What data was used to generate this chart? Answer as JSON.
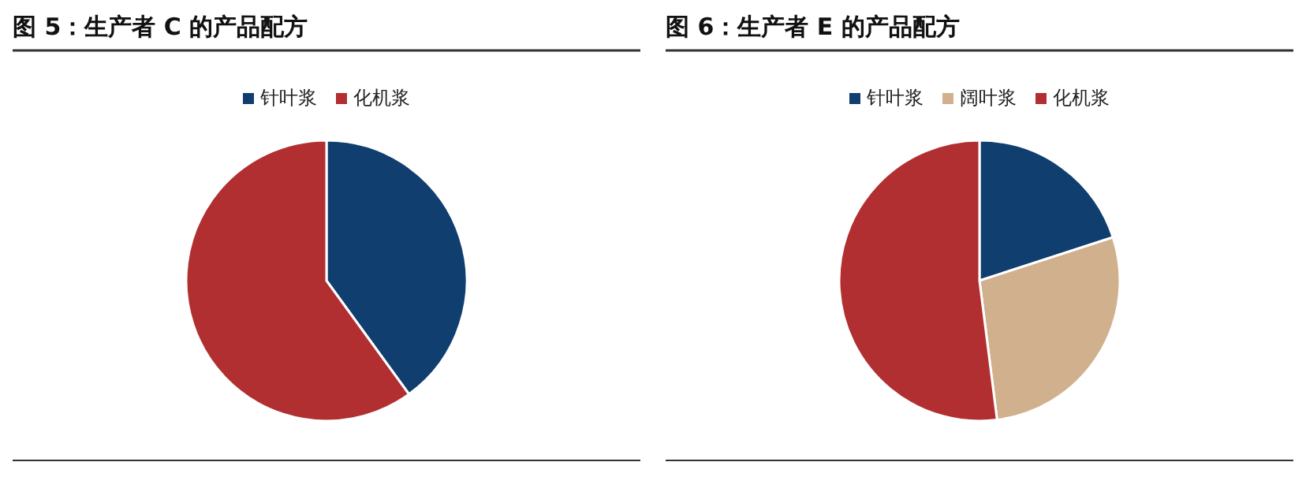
{
  "chart_data": [
    {
      "type": "pie",
      "title": "图 5：生产者 C 的产品配方",
      "categories": [
        "针叶浆",
        "化机浆"
      ],
      "values": [
        40,
        60
      ],
      "colors": [
        "#0f3e6f",
        "#b12f30"
      ],
      "legend": "top"
    },
    {
      "type": "pie",
      "title": "图 6：生产者 E 的产品配方",
      "categories": [
        "针叶浆",
        "阔叶浆",
        "化机浆"
      ],
      "values": [
        20,
        28,
        52
      ],
      "colors": [
        "#0f3e6f",
        "#d1b08d",
        "#b12f30"
      ],
      "legend": "top"
    }
  ]
}
